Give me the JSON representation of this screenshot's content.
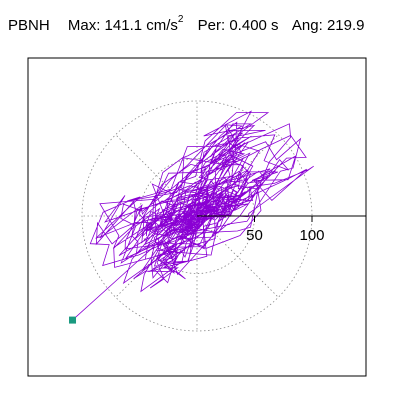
{
  "header": {
    "station": "PBNH",
    "max_label": "Max:",
    "max_value": "141.1 cm/s",
    "max_exp": "2",
    "per_label": "Per:",
    "per_value": "0.400 s",
    "ang_label": "Ang:",
    "ang_value": "219.9"
  },
  "chart_data": {
    "type": "scatter",
    "title": "",
    "xlabel": "",
    "ylabel": "",
    "radial_ticks": [
      50,
      100
    ],
    "radial_circles": [
      50,
      100
    ],
    "radial_unit": "cm/s^2",
    "max_value": 141.1,
    "max_angle_deg": 219.9,
    "period_s": 0.4,
    "end_marker": {
      "color": "#1a9a80"
    },
    "trace_color": "#8a00d4",
    "grid": "dotted polar (circles at 50 and 100, spokes every 45 degrees)"
  }
}
